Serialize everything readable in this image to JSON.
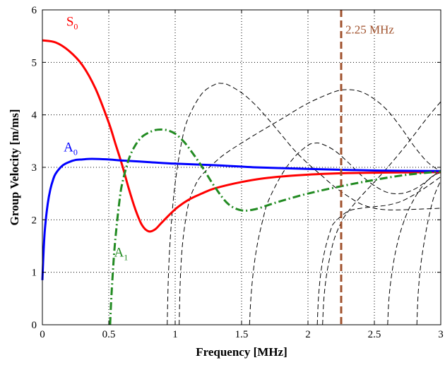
{
  "chart_data": {
    "type": "line",
    "xlabel": "Frequency [MHz]",
    "ylabel": "Group Velocity [m/ms]",
    "xlim": [
      0,
      3
    ],
    "ylim": [
      0,
      6
    ],
    "xticks": [
      0,
      0.5,
      1,
      1.5,
      2,
      2.5,
      3
    ],
    "xtick_labels": [
      "0",
      "0.5",
      "1",
      "1.5",
      "2",
      "2.5",
      "3"
    ],
    "yticks": [
      0,
      1,
      2,
      3,
      4,
      5,
      6
    ],
    "ytick_labels": [
      "0",
      "1",
      "2",
      "3",
      "4",
      "5",
      "6"
    ],
    "grid": true,
    "annotation": {
      "text": "2.25 MHz",
      "x": 2.25,
      "color": "#a0522d"
    },
    "series": [
      {
        "label_main": "S",
        "label_sub": "0",
        "label_at": [
          0.18,
          5.7
        ],
        "color": "#ff0000",
        "style": "solid",
        "x": [
          0,
          0.1,
          0.2,
          0.3,
          0.4,
          0.5,
          0.55,
          0.6,
          0.65,
          0.7,
          0.75,
          0.8,
          0.85,
          0.9,
          1.0,
          1.1,
          1.2,
          1.3,
          1.5,
          1.7,
          2.0,
          2.3,
          2.6,
          3.0
        ],
        "y": [
          5.42,
          5.38,
          5.22,
          4.95,
          4.5,
          3.85,
          3.45,
          3.05,
          2.6,
          2.2,
          1.9,
          1.78,
          1.82,
          1.95,
          2.2,
          2.38,
          2.5,
          2.6,
          2.72,
          2.8,
          2.86,
          2.89,
          2.9,
          2.91
        ]
      },
      {
        "label_main": "A",
        "label_sub": "0",
        "label_at": [
          0.16,
          3.3
        ],
        "color": "#0000ff",
        "style": "solid",
        "x": [
          0.0,
          0.01,
          0.02,
          0.04,
          0.06,
          0.08,
          0.1,
          0.15,
          0.2,
          0.25,
          0.3,
          0.35,
          0.4,
          0.5,
          0.6,
          0.8,
          1.0,
          1.3,
          1.6,
          2.0,
          2.5,
          3.0
        ],
        "y": [
          0.85,
          1.45,
          1.85,
          2.3,
          2.58,
          2.76,
          2.88,
          3.03,
          3.1,
          3.14,
          3.15,
          3.16,
          3.16,
          3.15,
          3.13,
          3.1,
          3.07,
          3.04,
          3.0,
          2.97,
          2.94,
          2.93
        ]
      },
      {
        "label_main": "A",
        "label_sub": "1",
        "label_at": [
          0.54,
          1.3
        ],
        "color": "#228b22",
        "style": "dashdot",
        "x": [
          0.51,
          0.52,
          0.54,
          0.56,
          0.58,
          0.6,
          0.65,
          0.7,
          0.75,
          0.8,
          0.85,
          0.9,
          0.95,
          1.0,
          1.05,
          1.1,
          1.2,
          1.3,
          1.4,
          1.5,
          1.6,
          1.7,
          1.8,
          2.0,
          2.25,
          2.5,
          2.75,
          3.0
        ],
        "y": [
          0.0,
          0.55,
          1.35,
          1.9,
          2.35,
          2.68,
          3.15,
          3.42,
          3.58,
          3.66,
          3.71,
          3.72,
          3.7,
          3.64,
          3.53,
          3.38,
          3.02,
          2.62,
          2.3,
          2.18,
          2.2,
          2.28,
          2.36,
          2.5,
          2.64,
          2.76,
          2.86,
          2.92
        ]
      },
      {
        "color": "#000000",
        "style": "dashed",
        "x": [
          0.94,
          0.95,
          0.97,
          1.0,
          1.05,
          1.1,
          1.2,
          1.3,
          1.35,
          1.4,
          1.5,
          1.6,
          1.7,
          1.8,
          1.9,
          2.0,
          2.1,
          2.2,
          2.3,
          2.4,
          2.5,
          2.6,
          2.7,
          2.8,
          2.9,
          3.0
        ],
        "y": [
          0.0,
          1.0,
          1.9,
          2.7,
          3.5,
          3.95,
          4.4,
          4.58,
          4.6,
          4.57,
          4.42,
          4.2,
          3.92,
          3.62,
          3.32,
          3.07,
          2.85,
          2.63,
          2.45,
          2.3,
          2.22,
          2.19,
          2.19,
          2.2,
          2.21,
          2.22
        ]
      },
      {
        "color": "#000000",
        "style": "dashed",
        "x": [
          1.03,
          1.04,
          1.06,
          1.1,
          1.15,
          1.2,
          1.3,
          1.4,
          1.6,
          1.8,
          2.0,
          2.2,
          2.3,
          2.4,
          2.5,
          2.6,
          2.7,
          2.8,
          2.9,
          3.0
        ],
        "y": [
          0.0,
          0.95,
          1.65,
          2.3,
          2.65,
          2.85,
          3.1,
          3.3,
          3.62,
          3.92,
          4.22,
          4.44,
          4.48,
          4.44,
          4.3,
          4.08,
          3.76,
          3.4,
          3.1,
          2.92
        ]
      },
      {
        "color": "#000000",
        "style": "dashed",
        "x": [
          1.56,
          1.57,
          1.59,
          1.62,
          1.66,
          1.7,
          1.8,
          1.9,
          2.0,
          2.05,
          2.1,
          2.2,
          2.3,
          2.4,
          2.5,
          2.6,
          2.7,
          2.8,
          2.9,
          3.0
        ],
        "y": [
          0.0,
          0.5,
          1.05,
          1.55,
          2.0,
          2.35,
          2.85,
          3.2,
          3.42,
          3.46,
          3.45,
          3.32,
          3.1,
          2.85,
          2.65,
          2.52,
          2.5,
          2.58,
          2.75,
          2.95
        ]
      },
      {
        "color": "#000000",
        "style": "dashed",
        "x": [
          2.07,
          2.08,
          2.1,
          2.13,
          2.17,
          2.2,
          2.3,
          2.4,
          2.5,
          2.6,
          2.7,
          2.8,
          2.9,
          3.0
        ],
        "y": [
          0.0,
          0.55,
          1.05,
          1.45,
          1.8,
          1.95,
          2.16,
          2.22,
          2.25,
          2.28,
          2.35,
          2.48,
          2.64,
          2.82
        ]
      },
      {
        "color": "#000000",
        "style": "dashed",
        "x": [
          2.11,
          2.12,
          2.14,
          2.17,
          2.2,
          2.25,
          2.3,
          2.4,
          2.5,
          2.6,
          2.7,
          2.8,
          2.9,
          3.0
        ],
        "y": [
          0.0,
          0.5,
          0.95,
          1.35,
          1.65,
          1.95,
          2.15,
          2.45,
          2.72,
          3.0,
          3.3,
          3.62,
          3.95,
          4.25
        ]
      },
      {
        "color": "#000000",
        "style": "dashed",
        "x": [
          2.6,
          2.61,
          2.63,
          2.66,
          2.7,
          2.75,
          2.8,
          2.85,
          2.9,
          2.95,
          3.0
        ],
        "y": [
          0.0,
          0.5,
          0.95,
          1.4,
          1.8,
          2.15,
          2.4,
          2.6,
          2.75,
          2.85,
          2.9
        ]
      },
      {
        "color": "#000000",
        "style": "dashed",
        "x": [
          2.82,
          2.83,
          2.85,
          2.88,
          2.91,
          2.95,
          3.0
        ],
        "y": [
          0.0,
          0.6,
          1.15,
          1.65,
          2.05,
          2.45,
          2.75
        ]
      }
    ]
  }
}
